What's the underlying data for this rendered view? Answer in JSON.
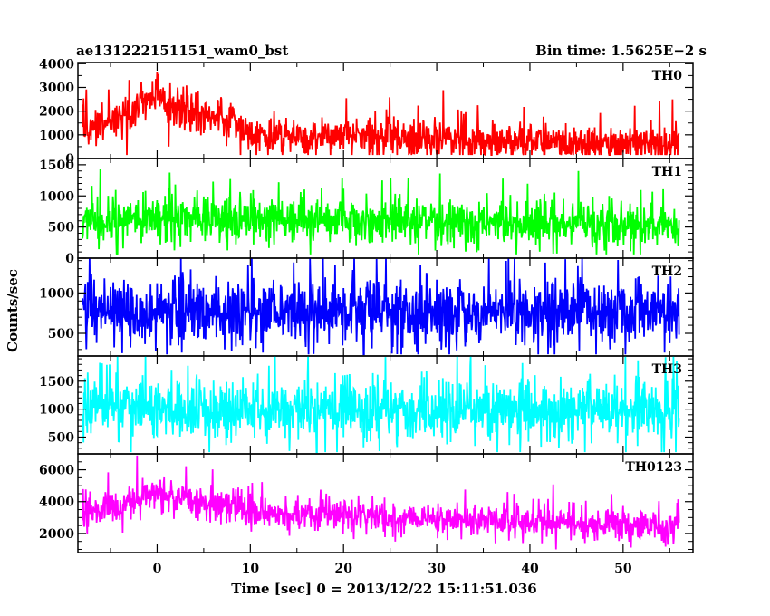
{
  "chart_data": {
    "type": "line",
    "title_left": "ae131222151151_wam0_bst",
    "title_right": "Bin time: 1.5625E−2 s",
    "xlabel": "Time [sec] 0 = 2013/12/22 15:11:51.036",
    "ylabel": "Counts/sec",
    "xlim": [
      -8.5,
      57.5
    ],
    "x_ticks": [
      0,
      10,
      20,
      30,
      40,
      50
    ],
    "x_start": -8.0,
    "x_end": 56.0,
    "bin_time": 0.015625,
    "panels": [
      {
        "name": "TH0",
        "color": "#ff0000",
        "ylim": [
          0,
          4050
        ],
        "y_ticks": [
          0,
          1000,
          2000,
          3000,
          4000
        ],
        "profile": [
          [
            -8,
            1200
          ],
          [
            -5,
            1500
          ],
          [
            -3,
            2000
          ],
          [
            -1,
            2400
          ],
          [
            0,
            3000
          ],
          [
            1,
            2100
          ],
          [
            3,
            2000
          ],
          [
            6,
            1800
          ],
          [
            8,
            1600
          ],
          [
            10,
            1000
          ],
          [
            15,
            900
          ],
          [
            20,
            900
          ],
          [
            25,
            850
          ],
          [
            30,
            800
          ],
          [
            40,
            700
          ],
          [
            50,
            650
          ],
          [
            56,
            650
          ]
        ],
        "noise": 520,
        "floor": 150,
        "ceil": 4050
      },
      {
        "name": "TH1",
        "color": "#00ff00",
        "ylim": [
          0,
          1600
        ],
        "y_ticks": [
          0,
          500,
          1000,
          1500
        ],
        "profile": [
          [
            -8,
            560
          ],
          [
            0,
            640
          ],
          [
            10,
            620
          ],
          [
            30,
            580
          ],
          [
            56,
            540
          ]
        ],
        "noise": 230,
        "floor": 60,
        "ceil": 1580
      },
      {
        "name": "TH2",
        "color": "#0000ff",
        "ylim": [
          220,
          1430
        ],
        "y_ticks": [
          500,
          1000
        ],
        "profile": [
          [
            -8,
            760
          ],
          [
            56,
            760
          ]
        ],
        "noise": 250,
        "floor": 240,
        "ceil": 1430
      },
      {
        "name": "TH3",
        "color": "#00ffff",
        "ylim": [
          200,
          1950
        ],
        "y_ticks": [
          500,
          1000,
          1500
        ],
        "profile": [
          [
            -8,
            1020
          ],
          [
            56,
            1000
          ]
        ],
        "noise": 330,
        "floor": 230,
        "ceil": 1950
      },
      {
        "name": "TH0123",
        "color": "#ff00ff",
        "ylim": [
          800,
          7000
        ],
        "y_ticks": [
          2000,
          4000,
          6000
        ],
        "profile": [
          [
            -8,
            3100
          ],
          [
            -5,
            3700
          ],
          [
            -2,
            4200
          ],
          [
            0,
            4600
          ],
          [
            2,
            4200
          ],
          [
            5,
            4000
          ],
          [
            8,
            3800
          ],
          [
            10,
            3300
          ],
          [
            20,
            3200
          ],
          [
            30,
            2900
          ],
          [
            40,
            2700
          ],
          [
            50,
            2500
          ],
          [
            56,
            2500
          ]
        ],
        "noise": 620,
        "floor": 1000,
        "ceil": 6900
      }
    ]
  }
}
